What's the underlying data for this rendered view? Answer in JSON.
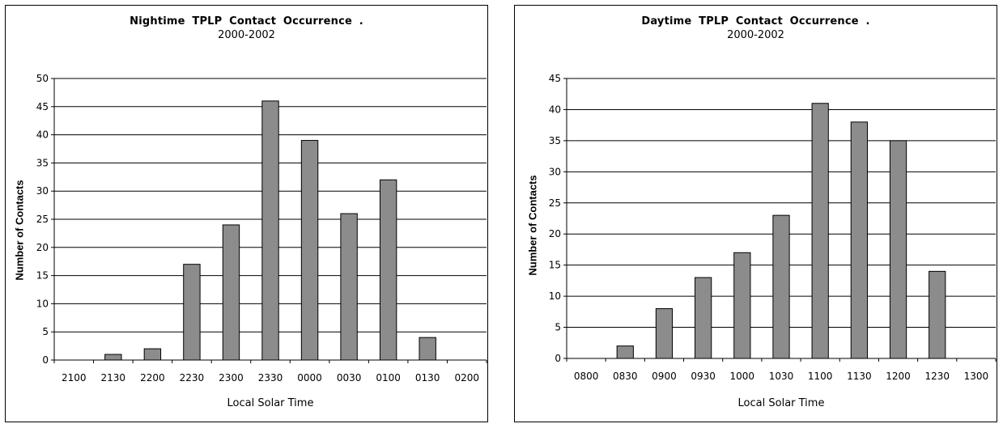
{
  "chart_data": [
    {
      "type": "bar",
      "title": "Nightime  TPLP  Contact  Occurrence    .",
      "subtitle": "2000-2002",
      "xlabel": "Local Solar Time",
      "ylabel": "Number of Contacts",
      "categories": [
        "2100",
        "2130",
        "2200",
        "2230",
        "2300",
        "2330",
        "0000",
        "0030",
        "0100",
        "0130",
        "0200"
      ],
      "values": [
        0,
        1,
        2,
        17,
        24,
        46,
        39,
        26,
        32,
        4,
        0
      ],
      "ylim": [
        0,
        50
      ],
      "yticks": [
        0,
        5,
        10,
        15,
        20,
        25,
        30,
        35,
        40,
        45,
        50
      ],
      "grid": true,
      "bar_color": "#8c8c8c"
    },
    {
      "type": "bar",
      "title": "Daytime  TPLP  Contact  Occurrence    .",
      "subtitle": "2000-2002",
      "xlabel": "Local Solar Time",
      "ylabel": "Number of Contacts",
      "categories": [
        "0800",
        "0830",
        "0900",
        "0930",
        "1000",
        "1030",
        "1100",
        "1130",
        "1200",
        "1230",
        "1300"
      ],
      "values": [
        0,
        2,
        8,
        13,
        17,
        23,
        41,
        38,
        35,
        14,
        0
      ],
      "ylim": [
        0,
        45
      ],
      "yticks": [
        0,
        5,
        10,
        15,
        20,
        25,
        30,
        35,
        40,
        45
      ],
      "grid": true,
      "bar_color": "#8c8c8c"
    }
  ]
}
